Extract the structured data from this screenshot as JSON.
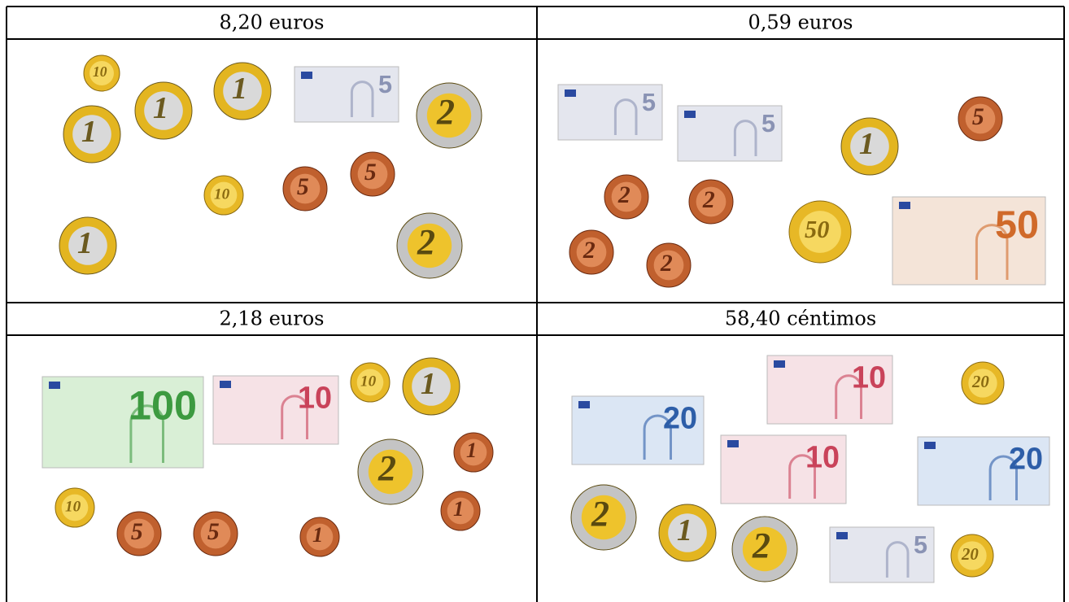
{
  "table": {
    "cells": [
      {
        "header": "8,20 euros",
        "items": [
          "10",
          "1",
          "1",
          "1",
          "5",
          "2",
          "10",
          "5",
          "5",
          "1",
          "2"
        ]
      },
      {
        "header": "0,59 euros",
        "items": [
          "5",
          "5",
          "1",
          "5",
          "2",
          "2",
          "2",
          "2",
          "50",
          "50"
        ]
      },
      {
        "header": "2,18 euros",
        "items": [
          "100",
          "10",
          "10",
          "1",
          "2",
          "1",
          "1",
          "10",
          "5",
          "5",
          "1"
        ]
      },
      {
        "header": "58,40 céntimos",
        "items": [
          "10",
          "20",
          "20",
          "10",
          "20",
          "2",
          "1",
          "2",
          "5",
          "20"
        ]
      }
    ]
  }
}
